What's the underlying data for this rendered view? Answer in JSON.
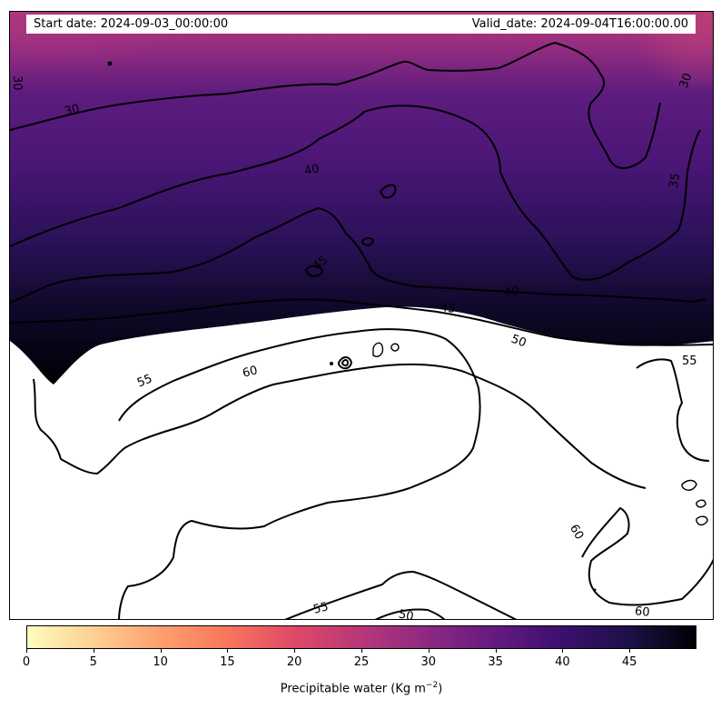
{
  "header": {
    "start_text": "Start date: 2024-09-03_00:00:00",
    "valid_text": "Valid_date: 2024-09-04T16:00:00.00"
  },
  "contour_labels": [
    "30",
    "30",
    "30",
    "35",
    "40",
    "40",
    "45",
    "45",
    "50",
    "55",
    "55",
    "60",
    "60",
    "55",
    "50",
    "60"
  ],
  "colorbar": {
    "title": "Precipitable water (Kg m",
    "title_sup": "−2",
    "title_end": ")",
    "ticks": [
      "0",
      "5",
      "10",
      "15",
      "20",
      "25",
      "30",
      "35",
      "40",
      "45"
    ],
    "min": 0,
    "max": 50,
    "colormap": "magma_r",
    "colors": [
      "#fcfdbf",
      "#fecf92",
      "#fe9f6d",
      "#f8765c",
      "#de4968",
      "#b73779",
      "#8c2981",
      "#641a80",
      "#3b0f70",
      "#1d1147",
      "#000004"
    ]
  }
}
